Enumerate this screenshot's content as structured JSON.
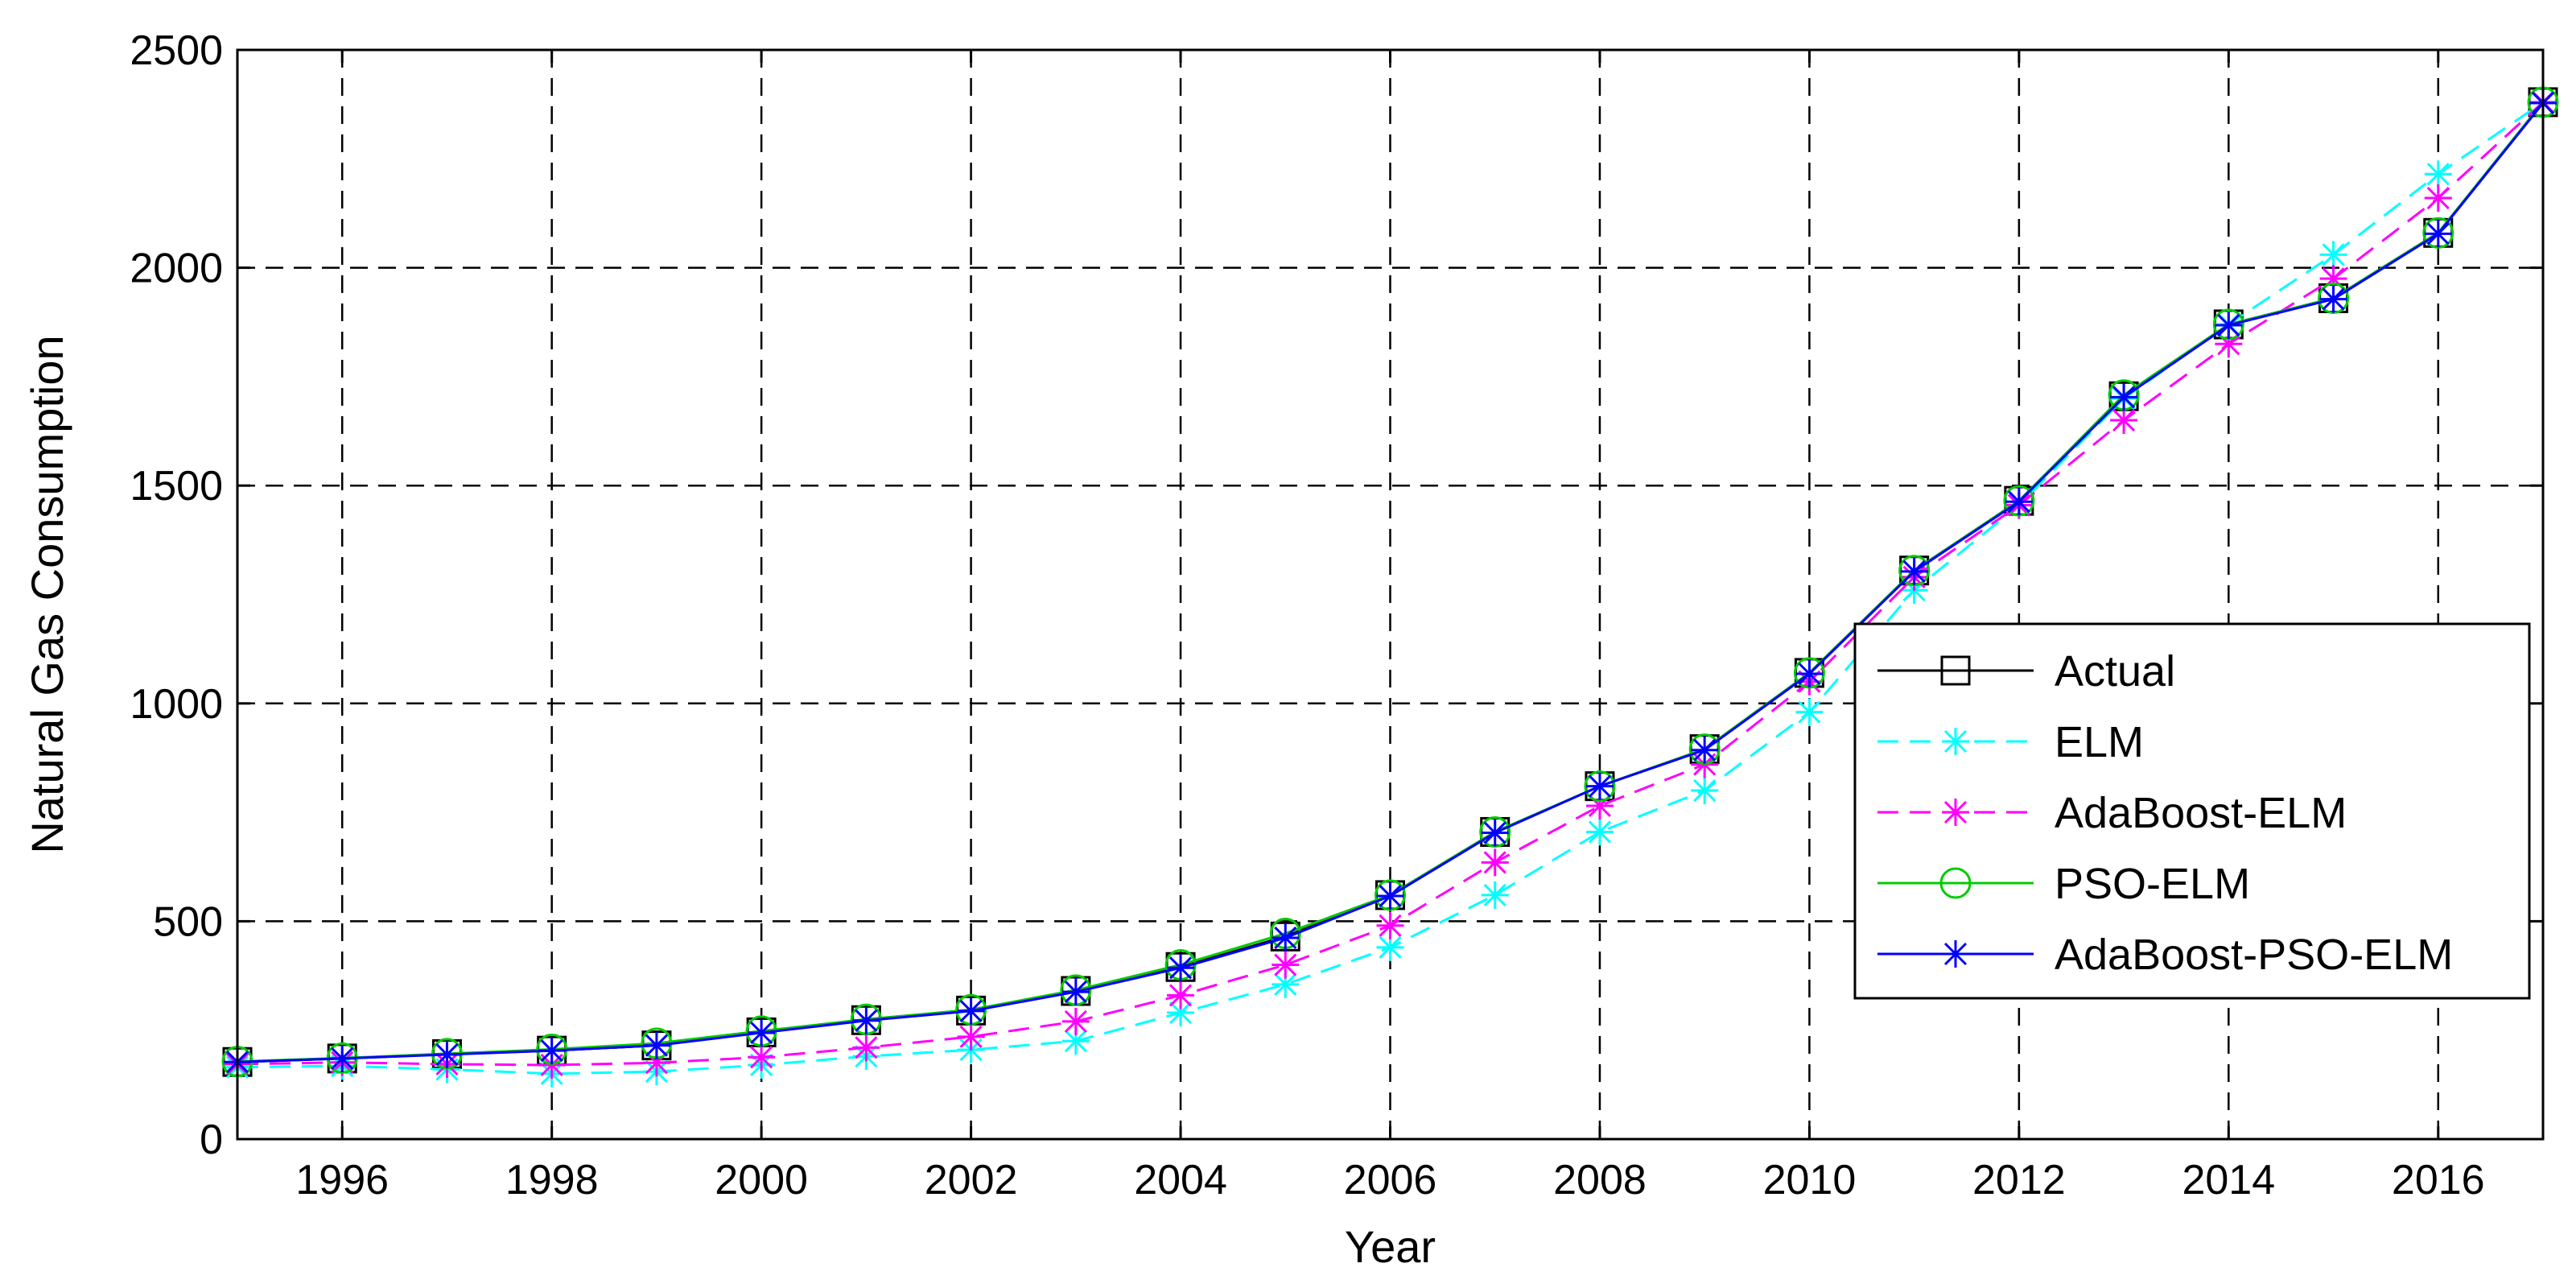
{
  "chart_data": {
    "type": "line",
    "title": "",
    "xlabel": "Year",
    "ylabel": "Natural Gas Consumption",
    "xlim": [
      1995,
      2017
    ],
    "ylim": [
      0,
      2500
    ],
    "x_ticks": [
      1996,
      1998,
      2000,
      2002,
      2004,
      2006,
      2008,
      2010,
      2012,
      2014,
      2016
    ],
    "y_ticks": [
      0,
      500,
      1000,
      1500,
      2000,
      2500
    ],
    "grid": true,
    "legend_position": "bottom-right",
    "x": [
      1995,
      1996,
      1997,
      1998,
      1999,
      2000,
      2001,
      2002,
      2003,
      2004,
      2005,
      2006,
      2007,
      2008,
      2009,
      2010,
      2011,
      2012,
      2013,
      2014,
      2015,
      2016,
      2017
    ],
    "series": [
      {
        "name": "Actual",
        "color": "#000000",
        "line_style": "solid",
        "marker": "square",
        "values": [
          177,
          185,
          195,
          203,
          215,
          245,
          273,
          295,
          340,
          395,
          465,
          560,
          705,
          810,
          895,
          1070,
          1305,
          1465,
          1705,
          1870,
          1930,
          2080,
          2380
        ]
      },
      {
        "name": "ELM",
        "color": "#00ffff",
        "line_style": "dashed",
        "marker": "star",
        "values": [
          165,
          168,
          160,
          150,
          155,
          170,
          190,
          205,
          225,
          290,
          355,
          440,
          560,
          705,
          800,
          980,
          1260,
          1455,
          1700,
          1870,
          2030,
          2215,
          2380
        ]
      },
      {
        "name": "AdaBoost-ELM",
        "color": "#ff00ff",
        "line_style": "dashed",
        "marker": "star",
        "values": [
          172,
          176,
          172,
          170,
          175,
          188,
          210,
          235,
          270,
          330,
          400,
          490,
          635,
          765,
          860,
          1050,
          1290,
          1455,
          1650,
          1825,
          1975,
          2160,
          2380
        ]
      },
      {
        "name": "PSO-ELM",
        "color": "#00cc00",
        "line_style": "solid",
        "marker": "circle",
        "values": [
          178,
          186,
          196,
          206,
          220,
          248,
          275,
          297,
          342,
          400,
          472,
          560,
          705,
          810,
          895,
          1070,
          1305,
          1465,
          1708,
          1870,
          1930,
          2080,
          2380
        ]
      },
      {
        "name": "AdaBoost-PSO-ELM",
        "color": "#0000ff",
        "line_style": "solid",
        "marker": "star",
        "values": [
          177,
          185,
          194,
          203,
          215,
          244,
          272,
          294,
          338,
          393,
          462,
          558,
          703,
          810,
          893,
          1068,
          1303,
          1463,
          1703,
          1868,
          1928,
          2078,
          2378
        ]
      }
    ]
  }
}
